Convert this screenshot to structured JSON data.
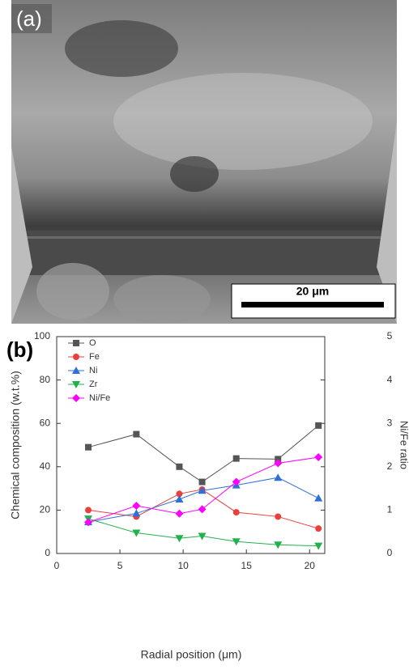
{
  "image_panel": {
    "label": "(a)",
    "scale_bar": "20 μm"
  },
  "chart_data": {
    "type": "line",
    "panel_label": "(b)",
    "x_label": "Radial position (μm)",
    "y_label": "Chemical composition (w.t.%)",
    "y2_label": "Ni/Fe ratio",
    "x": [
      2.5,
      6.3,
      9.7,
      11.5,
      14.2,
      17.5,
      20.7
    ],
    "series": [
      {
        "name": "O",
        "color": "#555555",
        "marker": "square",
        "values": [
          49,
          55,
          40,
          33,
          43.8,
          43.5,
          59
        ]
      },
      {
        "name": "Fe",
        "color": "#e8413c",
        "marker": "circle",
        "values": [
          20,
          17,
          27.5,
          29.5,
          19,
          17,
          11.5
        ]
      },
      {
        "name": "Ni",
        "color": "#2f6fd6",
        "marker": "triangle",
        "values": [
          14.5,
          18.5,
          25,
          29,
          31.5,
          35,
          25.5
        ]
      },
      {
        "name": "Zr",
        "color": "#22b14c",
        "marker": "triangle-down",
        "values": [
          16,
          9.5,
          7,
          8,
          5.5,
          4,
          3.5
        ]
      },
      {
        "name": "Ni/Fe",
        "color": "#ff00ff",
        "marker": "diamond",
        "axis": "y2",
        "values": [
          0.72,
          1.1,
          0.92,
          1.02,
          1.65,
          2.08,
          2.22
        ]
      }
    ],
    "xlim": [
      0,
      21.2
    ],
    "xticks": [
      0,
      5,
      10,
      15,
      20
    ],
    "ylim": [
      0,
      100
    ],
    "yticks": [
      0,
      20,
      40,
      60,
      80,
      100
    ],
    "y2lim": [
      0,
      5
    ],
    "y2ticks": [
      0,
      1,
      2,
      3,
      4,
      5
    ],
    "legend": "upper-left"
  }
}
